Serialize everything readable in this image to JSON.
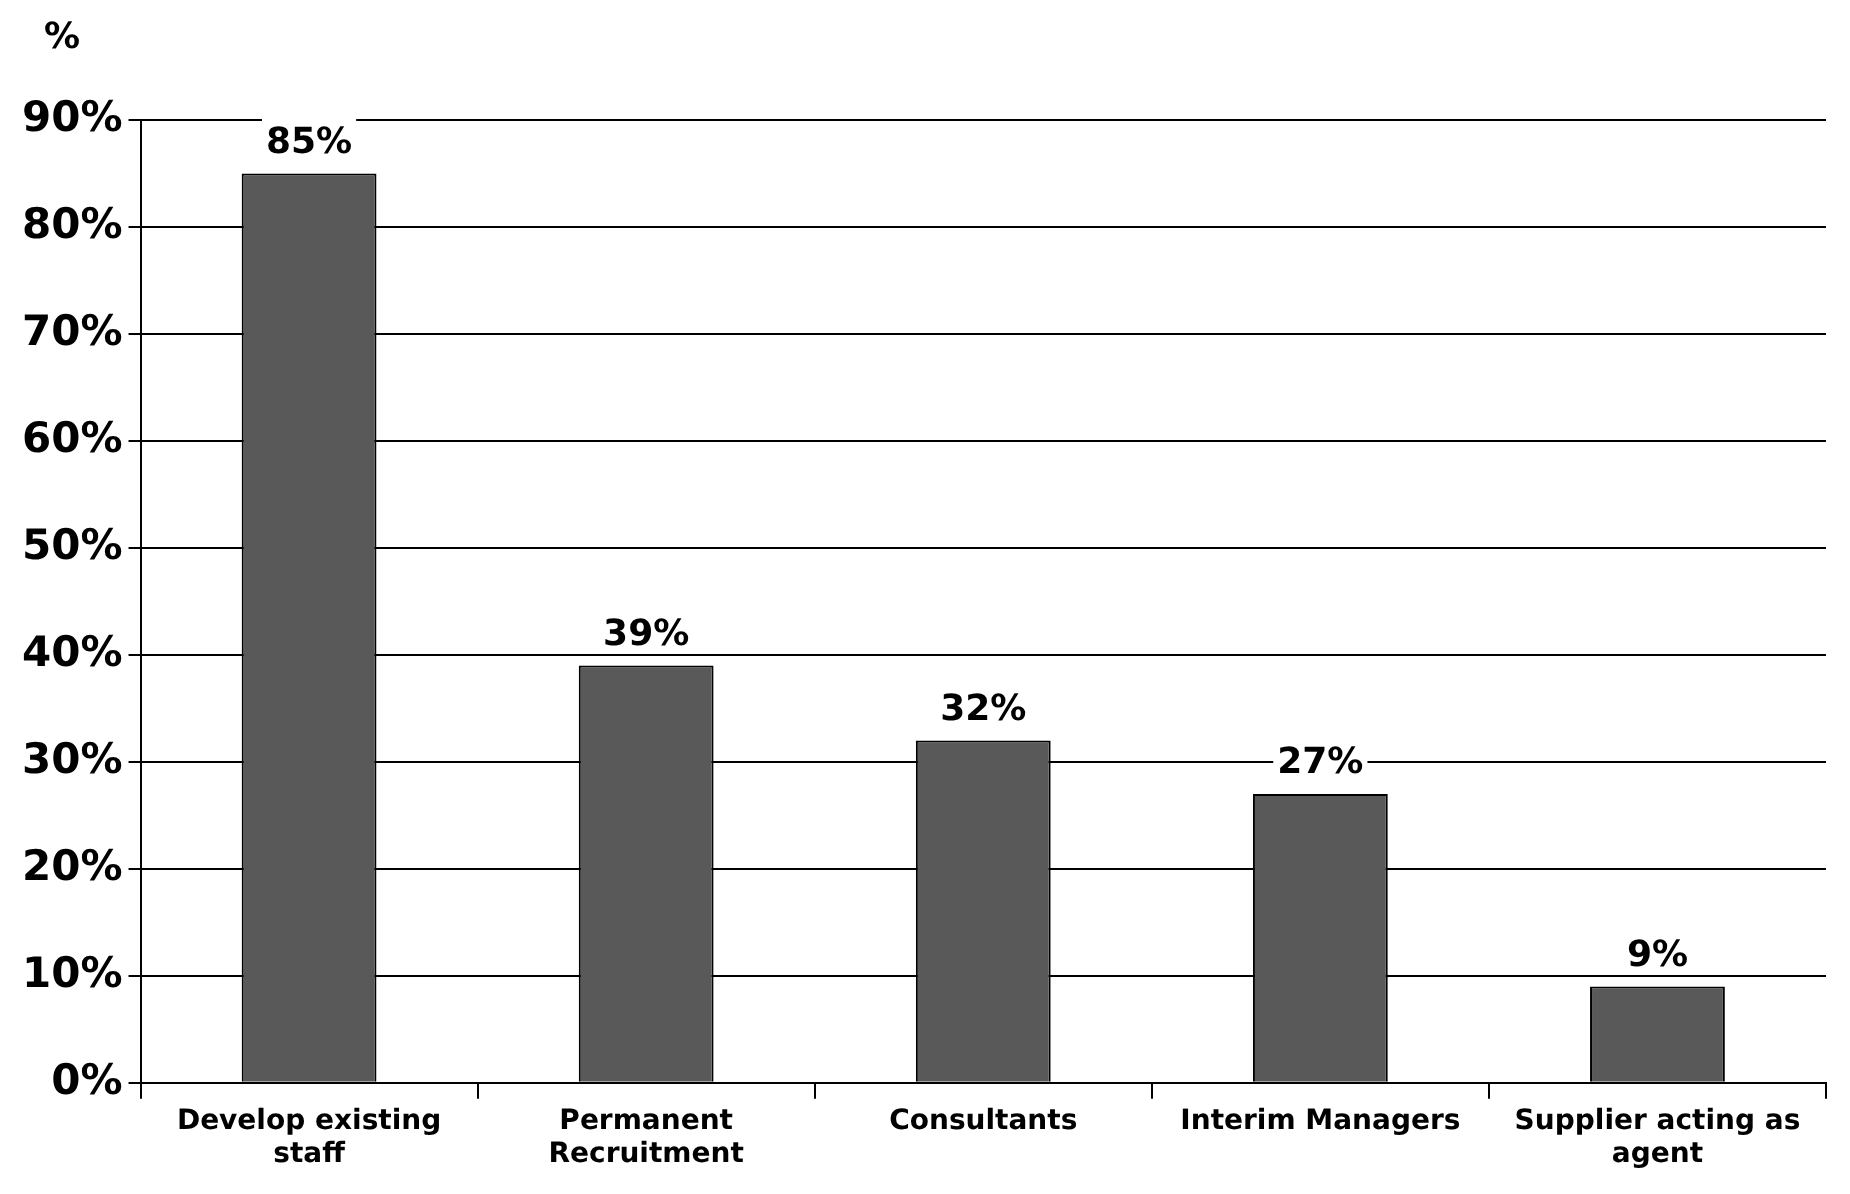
{
  "chart_data": {
    "type": "bar",
    "ylabel": "%",
    "categories": [
      "Develop existing staff",
      "Permanent Recruitment",
      "Consultants",
      "Interim Managers",
      "Supplier acting as agent"
    ],
    "values": [
      85,
      39,
      32,
      27,
      9
    ],
    "color": "#595959",
    "ylim": [
      0,
      90
    ],
    "yticks": [
      {
        "value": 0,
        "label": "0%"
      },
      {
        "value": 10,
        "label": "10%"
      },
      {
        "value": 20,
        "label": "20%"
      },
      {
        "value": 30,
        "label": "30%"
      },
      {
        "value": 40,
        "label": "40%"
      },
      {
        "value": 50,
        "label": "50%"
      },
      {
        "value": 60,
        "label": "60%"
      },
      {
        "value": 70,
        "label": "70%"
      },
      {
        "value": 80,
        "label": "80%"
      },
      {
        "value": 90,
        "label": "90%"
      }
    ],
    "value_labels": [
      "85%",
      "39%",
      "32%",
      "27%",
      "9%"
    ],
    "grid": "y",
    "legend": false
  }
}
